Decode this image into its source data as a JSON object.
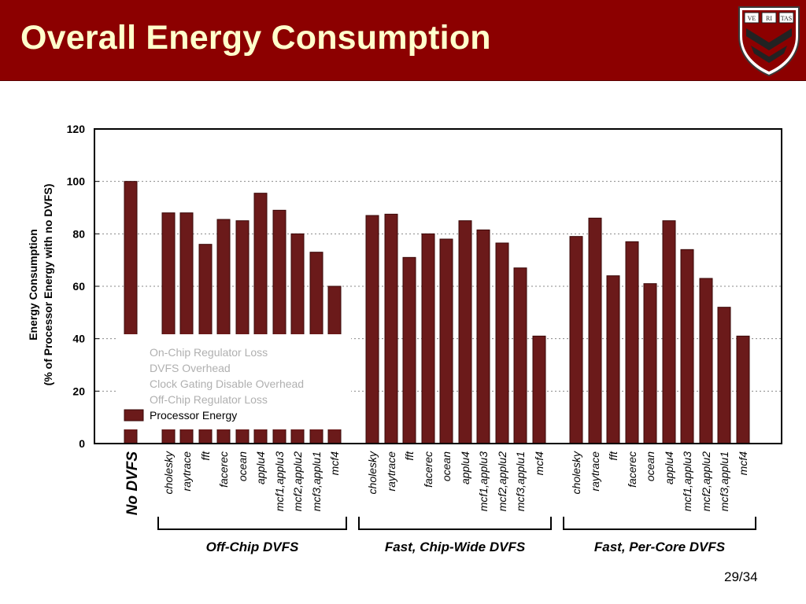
{
  "slide": {
    "title": "Overall Energy Consumption",
    "page_number": "29/34",
    "logo_text": [
      "VE",
      "RI",
      "TAS"
    ]
  },
  "colors": {
    "header_bg": "#8c0000",
    "title_text": "#ffffcc",
    "bar_fill": "#6b1a1a",
    "bar_stroke": "#3a0808",
    "legend_faded_text": "#b0b0b0"
  },
  "chart_data": {
    "type": "bar",
    "title": "",
    "ylabel": [
      "Energy Consumption",
      "(% of Processor Energy with no DVFS)"
    ],
    "xlabel": "",
    "ylim": [
      0,
      120
    ],
    "yticks": [
      0,
      20,
      40,
      60,
      80,
      100,
      120
    ],
    "grid": "horizontal-dotted",
    "legend_position": "inside-lower-left",
    "legend": [
      {
        "label": "On-Chip Regulator Loss",
        "faded": true
      },
      {
        "label": "DVFS Overhead",
        "faded": true
      },
      {
        "label": "Clock Gating Disable Overhead",
        "faded": true
      },
      {
        "label": "Off-Chip Regulator Loss",
        "faded": true
      },
      {
        "label": "Processor Energy",
        "faded": false
      }
    ],
    "baseline": {
      "label": "No DVFS",
      "value": 100
    },
    "groups": [
      {
        "name": "Off-Chip DVFS",
        "categories": [
          "cholesky",
          "raytrace",
          "fft",
          "facerec",
          "ocean",
          "applu4",
          "mcf1,applu3",
          "mcf2,applu2",
          "mcf3,applu1",
          "mcf4"
        ],
        "values": [
          88,
          88,
          76,
          85.5,
          85,
          95.5,
          89,
          80,
          73,
          60
        ]
      },
      {
        "name": "Fast, Chip-Wide DVFS",
        "categories": [
          "cholesky",
          "raytrace",
          "fft",
          "facerec",
          "ocean",
          "applu4",
          "mcf1,applu3",
          "mcf2,applu2",
          "mcf3,applu1",
          "mcf4"
        ],
        "values": [
          87,
          87.5,
          71,
          80,
          78,
          85,
          81.5,
          76.5,
          67,
          41
        ]
      },
      {
        "name": "Fast, Per-Core DVFS",
        "categories": [
          "cholesky",
          "raytrace",
          "fft",
          "facerec",
          "ocean",
          "applu4",
          "mcf1,applu3",
          "mcf2,applu2",
          "mcf3,applu1",
          "mcf4"
        ],
        "values": [
          79,
          86,
          64,
          77,
          61,
          85,
          74,
          63,
          52,
          41
        ]
      }
    ]
  }
}
